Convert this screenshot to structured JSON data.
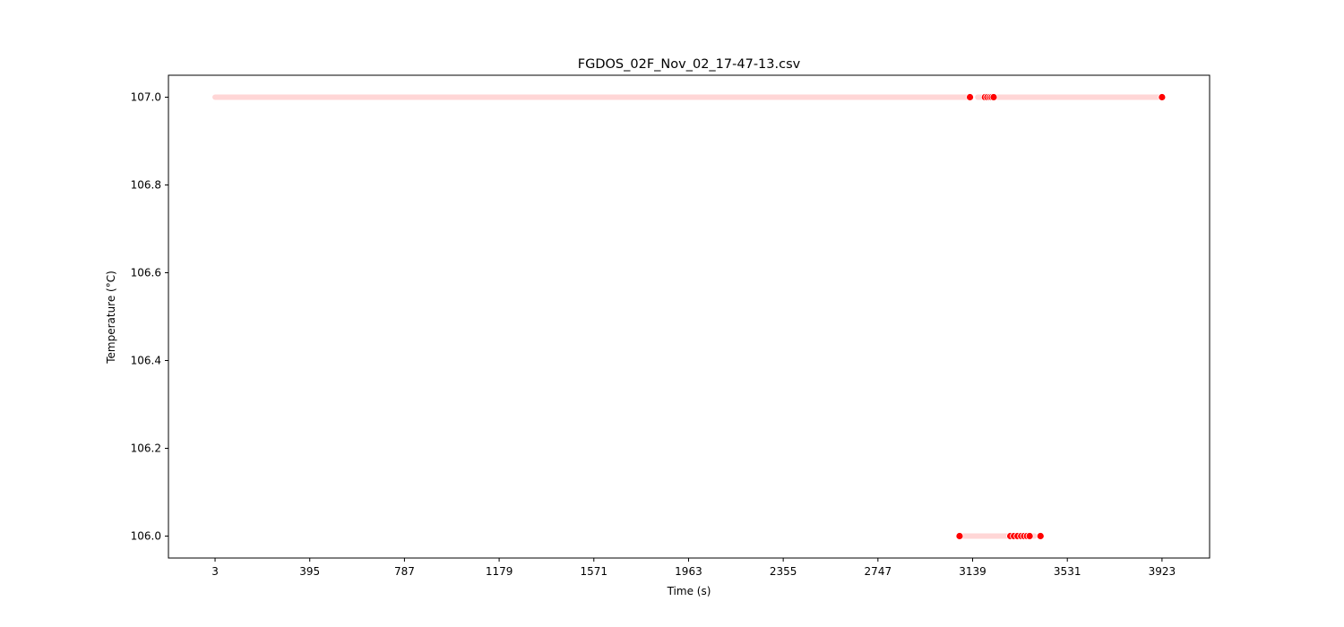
{
  "chart_data": {
    "type": "scatter",
    "title": "FGDOS_02F_Nov_02_17-47-13.csv",
    "xlabel": "Time (s)",
    "ylabel": "Temperature (°C)",
    "xlim": [
      -190,
      4120
    ],
    "ylim": [
      105.95,
      107.05
    ],
    "x_ticks": [
      3,
      395,
      787,
      1179,
      1571,
      1963,
      2355,
      2747,
      3139,
      3531,
      3923
    ],
    "y_ticks": [
      106.0,
      106.2,
      106.4,
      106.6,
      106.8,
      107.0
    ],
    "y_tick_labels": [
      "106.0",
      "106.2",
      "106.4",
      "106.6",
      "106.8",
      "107.0"
    ],
    "grid": false,
    "colors": {
      "points": "#ff0000",
      "points_faint": "#ffd6d6"
    },
    "series": [
      {
        "faint_ranges": [
          {
            "x_start": 3,
            "x_end": 3125,
            "y": 107.0
          },
          {
            "x_start": 3160,
            "x_end": 3920,
            "y": 107.0
          },
          {
            "x_start": 3085,
            "x_end": 3395,
            "y": 106.0
          }
        ],
        "points": [
          {
            "x": 3128,
            "y": 107.0
          },
          {
            "x": 3190,
            "y": 107.0
          },
          {
            "x": 3200,
            "y": 107.0
          },
          {
            "x": 3210,
            "y": 107.0
          },
          {
            "x": 3218,
            "y": 107.0
          },
          {
            "x": 3226,
            "y": 107.0
          },
          {
            "x": 3923,
            "y": 107.0
          },
          {
            "x": 3085,
            "y": 106.0
          },
          {
            "x": 3295,
            "y": 106.0
          },
          {
            "x": 3310,
            "y": 106.0
          },
          {
            "x": 3325,
            "y": 106.0
          },
          {
            "x": 3340,
            "y": 106.0
          },
          {
            "x": 3352,
            "y": 106.0
          },
          {
            "x": 3364,
            "y": 106.0
          },
          {
            "x": 3375,
            "y": 106.0
          },
          {
            "x": 3420,
            "y": 106.0
          }
        ]
      }
    ]
  }
}
